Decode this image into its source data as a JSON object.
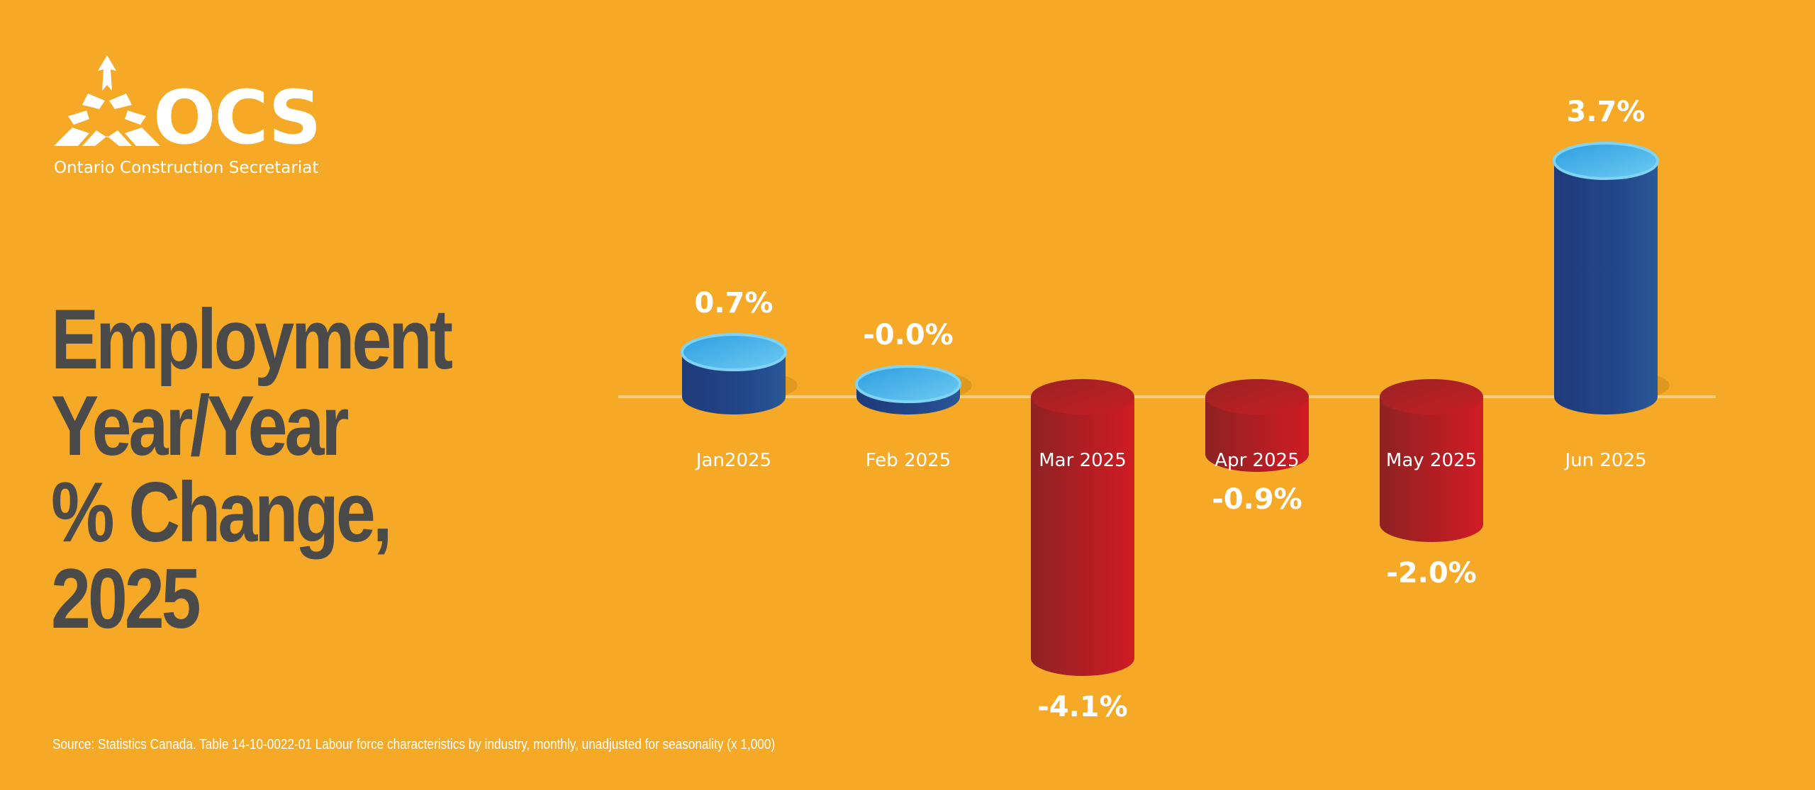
{
  "brand": {
    "logo_text": "OCS",
    "logo_subtitle": "Ontario Construction Secretariat",
    "logo_icon": "ocs-tri-arrow-logo"
  },
  "title_lines": [
    "Employment",
    "Year/Year",
    "% Change,",
    "2025"
  ],
  "source": "Source: Statistics Canada. Table 14-10-0022-01  Labour force characteristics by industry, monthly, unadjusted for seasonality (x 1,000)",
  "colors": {
    "background": "#F5A926",
    "negative": "#C41E24",
    "positive": "#234A8E",
    "title": "#4A4A4A",
    "text": "#FFFFFF"
  },
  "chart_data": {
    "type": "bar",
    "categories": [
      "Jan2025",
      "Feb 2025",
      "Mar 2025",
      "Apr 2025",
      "May 2025",
      "Jun 2025"
    ],
    "values": [
      0.7,
      -0.0,
      -4.1,
      -0.9,
      -2.0,
      3.7
    ],
    "value_labels": [
      "0.7%",
      "-0.0%",
      "-4.1%",
      "-0.9%",
      "-2.0%",
      "3.7%"
    ],
    "title": "Employment Year/Year % Change, 2025",
    "xlabel": "",
    "ylabel": "",
    "grid": false,
    "baseline": 0
  }
}
